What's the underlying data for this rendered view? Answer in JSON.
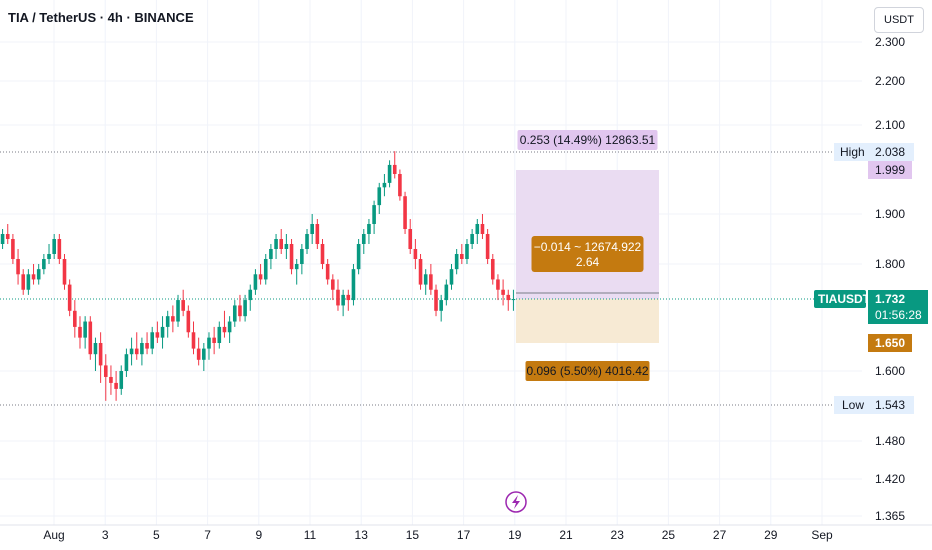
{
  "header": {
    "title": "TIA / TetherUS · 4h · BINANCE",
    "currency_button": "USDT"
  },
  "colors": {
    "up": "#089981",
    "down": "#f23645",
    "grid": "#f0f3fa",
    "profit_fill": "#eadcf2",
    "loss_fill": "#f7ead4",
    "profit_label_bg": "#e1c6ef",
    "loss_label_bg": "#c47a10",
    "price_tag": "#089981"
  },
  "chart_data": {
    "type": "candlestick",
    "y_axis": {
      "ticks": [
        "2.300",
        "2.200",
        "2.100",
        "1.900",
        "1.800",
        "1.600",
        "1.480",
        "1.420",
        "1.365"
      ]
    },
    "x_axis": {
      "ticks": [
        "Aug",
        "3",
        "5",
        "7",
        "9",
        "11",
        "13",
        "15",
        "17",
        "19",
        "21",
        "23",
        "25",
        "27",
        "29",
        "Sep"
      ]
    },
    "high": {
      "label": "High",
      "value": "2.038"
    },
    "low": {
      "label": "Low",
      "value": "1.543"
    },
    "symbol_tag": {
      "symbol": "TIAUSDT",
      "price": "1.732",
      "countdown": "01:56:28"
    },
    "position": {
      "target_price": "1.999",
      "stop_price": "1.650",
      "target_label": "0.253 (14.49%) 12863.51",
      "center_label_line1": "−0.014 ~ 12674.922",
      "center_label_line2": "2.64",
      "stop_label": "0.096 (5.50%) 4016.42"
    },
    "candles": [
      [
        1.84,
        1.87,
        1.83,
        1.86
      ],
      [
        1.86,
        1.88,
        1.84,
        1.85
      ],
      [
        1.85,
        1.86,
        1.8,
        1.81
      ],
      [
        1.81,
        1.83,
        1.76,
        1.78
      ],
      [
        1.78,
        1.79,
        1.74,
        1.75
      ],
      [
        1.75,
        1.79,
        1.74,
        1.78
      ],
      [
        1.78,
        1.8,
        1.76,
        1.77
      ],
      [
        1.77,
        1.8,
        1.76,
        1.79
      ],
      [
        1.79,
        1.82,
        1.78,
        1.81
      ],
      [
        1.81,
        1.84,
        1.8,
        1.82
      ],
      [
        1.82,
        1.86,
        1.81,
        1.85
      ],
      [
        1.85,
        1.86,
        1.8,
        1.81
      ],
      [
        1.81,
        1.82,
        1.75,
        1.76
      ],
      [
        1.76,
        1.77,
        1.7,
        1.71
      ],
      [
        1.71,
        1.73,
        1.66,
        1.68
      ],
      [
        1.68,
        1.7,
        1.64,
        1.66
      ],
      [
        1.66,
        1.7,
        1.64,
        1.69
      ],
      [
        1.69,
        1.7,
        1.62,
        1.63
      ],
      [
        1.63,
        1.66,
        1.6,
        1.65
      ],
      [
        1.65,
        1.67,
        1.58,
        1.61
      ],
      [
        1.61,
        1.63,
        1.55,
        1.59
      ],
      [
        1.59,
        1.61,
        1.56,
        1.58
      ],
      [
        1.58,
        1.6,
        1.55,
        1.57
      ],
      [
        1.57,
        1.61,
        1.56,
        1.6
      ],
      [
        1.6,
        1.64,
        1.59,
        1.63
      ],
      [
        1.63,
        1.66,
        1.61,
        1.64
      ],
      [
        1.64,
        1.67,
        1.62,
        1.63
      ],
      [
        1.63,
        1.66,
        1.61,
        1.65
      ],
      [
        1.65,
        1.67,
        1.63,
        1.64
      ],
      [
        1.64,
        1.68,
        1.63,
        1.67
      ],
      [
        1.67,
        1.69,
        1.65,
        1.66
      ],
      [
        1.66,
        1.7,
        1.64,
        1.68
      ],
      [
        1.68,
        1.71,
        1.66,
        1.7
      ],
      [
        1.7,
        1.72,
        1.67,
        1.69
      ],
      [
        1.69,
        1.74,
        1.68,
        1.73
      ],
      [
        1.73,
        1.75,
        1.7,
        1.71
      ],
      [
        1.71,
        1.72,
        1.66,
        1.67
      ],
      [
        1.67,
        1.69,
        1.63,
        1.64
      ],
      [
        1.64,
        1.66,
        1.61,
        1.62
      ],
      [
        1.62,
        1.65,
        1.6,
        1.64
      ],
      [
        1.64,
        1.67,
        1.62,
        1.66
      ],
      [
        1.66,
        1.68,
        1.63,
        1.65
      ],
      [
        1.65,
        1.69,
        1.64,
        1.68
      ],
      [
        1.68,
        1.71,
        1.66,
        1.67
      ],
      [
        1.67,
        1.7,
        1.65,
        1.69
      ],
      [
        1.69,
        1.73,
        1.68,
        1.72
      ],
      [
        1.72,
        1.74,
        1.69,
        1.7
      ],
      [
        1.7,
        1.74,
        1.69,
        1.73
      ],
      [
        1.73,
        1.76,
        1.71,
        1.75
      ],
      [
        1.75,
        1.79,
        1.74,
        1.78
      ],
      [
        1.78,
        1.8,
        1.76,
        1.77
      ],
      [
        1.77,
        1.82,
        1.76,
        1.81
      ],
      [
        1.81,
        1.84,
        1.79,
        1.83
      ],
      [
        1.83,
        1.86,
        1.81,
        1.85
      ],
      [
        1.85,
        1.87,
        1.82,
        1.83
      ],
      [
        1.83,
        1.86,
        1.81,
        1.84
      ],
      [
        1.84,
        1.85,
        1.78,
        1.79
      ],
      [
        1.79,
        1.81,
        1.76,
        1.8
      ],
      [
        1.8,
        1.84,
        1.78,
        1.83
      ],
      [
        1.83,
        1.87,
        1.82,
        1.86
      ],
      [
        1.86,
        1.9,
        1.84,
        1.88
      ],
      [
        1.88,
        1.89,
        1.83,
        1.84
      ],
      [
        1.84,
        1.85,
        1.79,
        1.8
      ],
      [
        1.8,
        1.81,
        1.76,
        1.77
      ],
      [
        1.77,
        1.78,
        1.73,
        1.75
      ],
      [
        1.75,
        1.77,
        1.71,
        1.72
      ],
      [
        1.72,
        1.75,
        1.7,
        1.74
      ],
      [
        1.74,
        1.75,
        1.71,
        1.73
      ],
      [
        1.73,
        1.8,
        1.72,
        1.79
      ],
      [
        1.79,
        1.85,
        1.78,
        1.84
      ],
      [
        1.84,
        1.87,
        1.82,
        1.86
      ],
      [
        1.86,
        1.89,
        1.84,
        1.88
      ],
      [
        1.88,
        1.93,
        1.86,
        1.92
      ],
      [
        1.92,
        1.97,
        1.9,
        1.96
      ],
      [
        1.96,
        1.99,
        1.94,
        1.97
      ],
      [
        1.97,
        2.02,
        1.96,
        2.01
      ],
      [
        2.01,
        2.04,
        1.98,
        1.99
      ],
      [
        1.99,
        2.0,
        1.93,
        1.94
      ],
      [
        1.94,
        1.95,
        1.86,
        1.87
      ],
      [
        1.87,
        1.89,
        1.82,
        1.83
      ],
      [
        1.83,
        1.85,
        1.79,
        1.81
      ],
      [
        1.81,
        1.82,
        1.75,
        1.76
      ],
      [
        1.76,
        1.79,
        1.74,
        1.78
      ],
      [
        1.78,
        1.8,
        1.74,
        1.75
      ],
      [
        1.75,
        1.76,
        1.7,
        1.71
      ],
      [
        1.71,
        1.74,
        1.69,
        1.73
      ],
      [
        1.73,
        1.77,
        1.72,
        1.76
      ],
      [
        1.76,
        1.8,
        1.75,
        1.79
      ],
      [
        1.79,
        1.83,
        1.78,
        1.82
      ],
      [
        1.82,
        1.84,
        1.8,
        1.81
      ],
      [
        1.81,
        1.85,
        1.8,
        1.84
      ],
      [
        1.84,
        1.87,
        1.83,
        1.86
      ],
      [
        1.86,
        1.89,
        1.84,
        1.88
      ],
      [
        1.88,
        1.9,
        1.85,
        1.86
      ],
      [
        1.86,
        1.87,
        1.8,
        1.81
      ],
      [
        1.81,
        1.82,
        1.76,
        1.77
      ],
      [
        1.77,
        1.78,
        1.73,
        1.75
      ],
      [
        1.75,
        1.77,
        1.72,
        1.74
      ],
      [
        1.74,
        1.75,
        1.71,
        1.73
      ],
      [
        1.73,
        1.75,
        1.71,
        1.732
      ]
    ]
  }
}
